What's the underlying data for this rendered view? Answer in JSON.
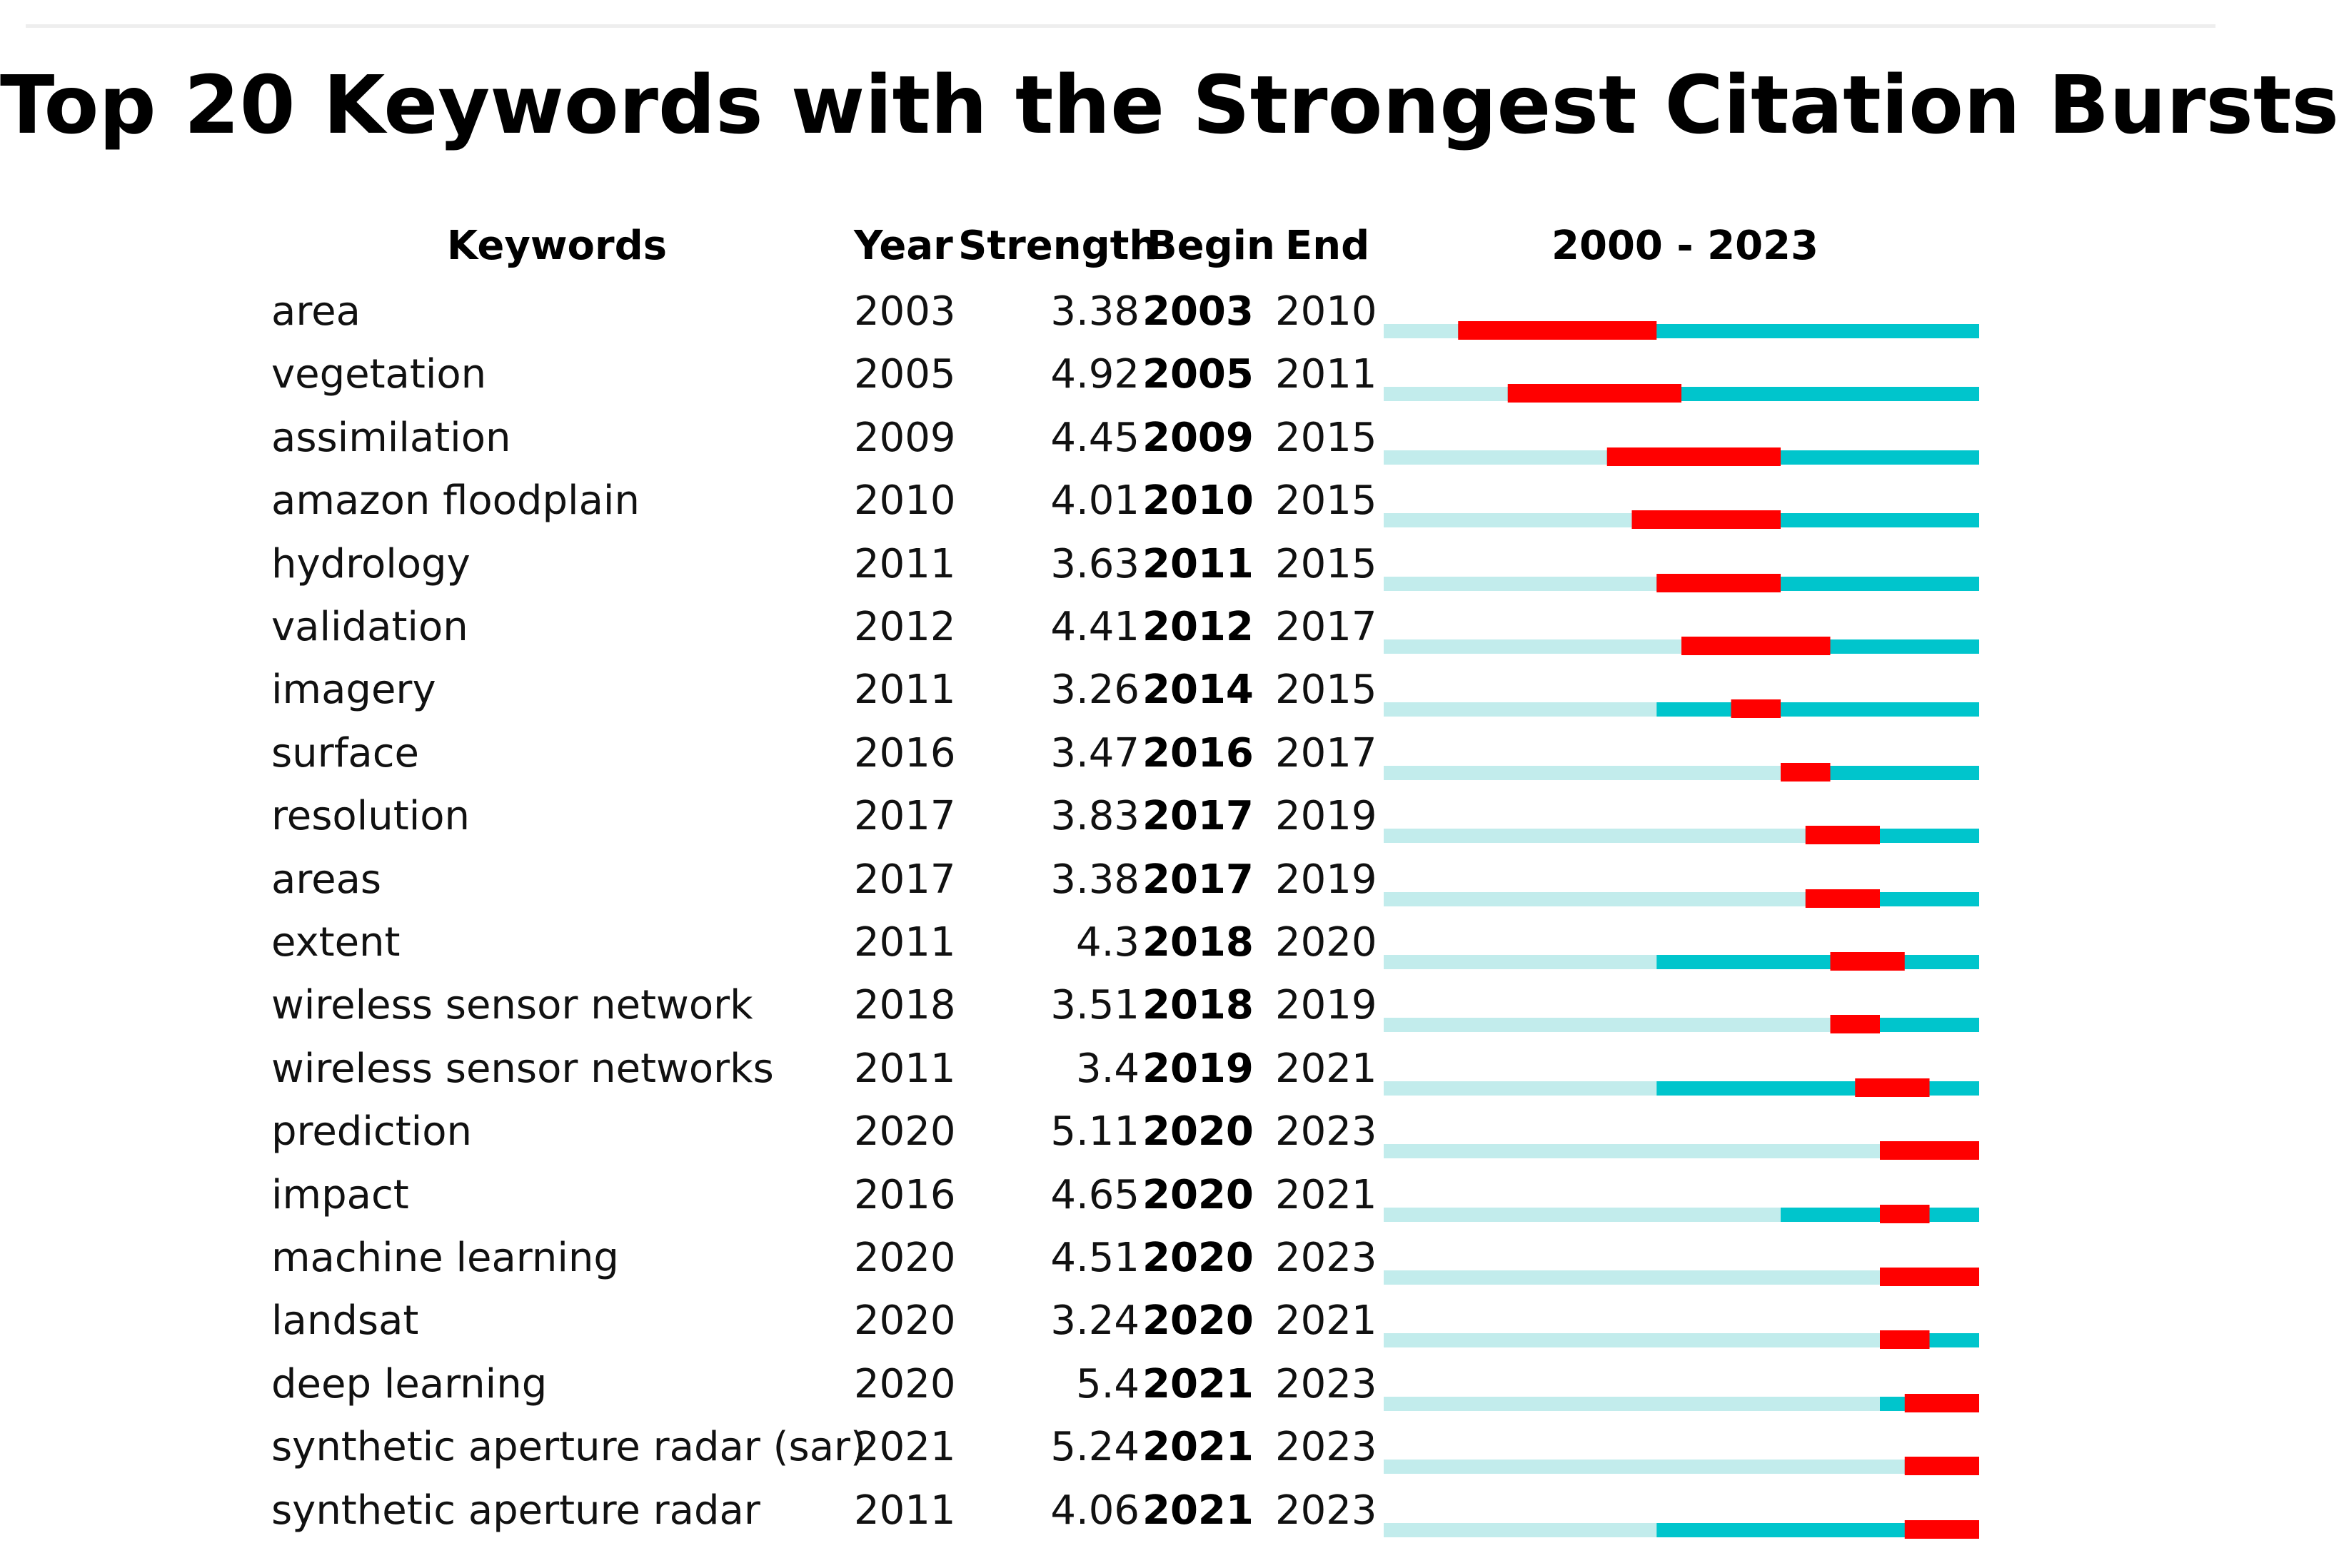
{
  "chart_data": {
    "type": "table",
    "title": "Top 20 Keywords with the Strongest Citation Bursts",
    "columns": {
      "keywords": "Keywords",
      "year": "Year",
      "strength": "Strength",
      "begin": "Begin",
      "end": "End",
      "timeline": "2000 - 2023"
    },
    "range": [
      2000,
      2023
    ],
    "colors": {
      "pre": "#c2ecec",
      "active": "#00c5cc",
      "burst": "#ff0000"
    },
    "rows": [
      {
        "keyword": "area",
        "year": "2003",
        "strength": "3.38",
        "begin": "2003",
        "end": "2010"
      },
      {
        "keyword": "vegetation",
        "year": "2005",
        "strength": "4.92",
        "begin": "2005",
        "end": "2011"
      },
      {
        "keyword": "assimilation",
        "year": "2009",
        "strength": "4.45",
        "begin": "2009",
        "end": "2015"
      },
      {
        "keyword": "amazon floodplain",
        "year": "2010",
        "strength": "4.01",
        "begin": "2010",
        "end": "2015"
      },
      {
        "keyword": "hydrology",
        "year": "2011",
        "strength": "3.63",
        "begin": "2011",
        "end": "2015"
      },
      {
        "keyword": "validation",
        "year": "2012",
        "strength": "4.41",
        "begin": "2012",
        "end": "2017"
      },
      {
        "keyword": "imagery",
        "year": "2011",
        "strength": "3.26",
        "begin": "2014",
        "end": "2015"
      },
      {
        "keyword": "surface",
        "year": "2016",
        "strength": "3.47",
        "begin": "2016",
        "end": "2017"
      },
      {
        "keyword": "resolution",
        "year": "2017",
        "strength": "3.83",
        "begin": "2017",
        "end": "2019"
      },
      {
        "keyword": "areas",
        "year": "2017",
        "strength": "3.38",
        "begin": "2017",
        "end": "2019"
      },
      {
        "keyword": "extent",
        "year": "2011",
        "strength": "4.3",
        "begin": "2018",
        "end": "2020"
      },
      {
        "keyword": "wireless sensor network",
        "year": "2018",
        "strength": "3.51",
        "begin": "2018",
        "end": "2019"
      },
      {
        "keyword": "wireless sensor networks",
        "year": "2011",
        "strength": "3.4",
        "begin": "2019",
        "end": "2021"
      },
      {
        "keyword": "prediction",
        "year": "2020",
        "strength": "5.11",
        "begin": "2020",
        "end": "2023"
      },
      {
        "keyword": "impact",
        "year": "2016",
        "strength": "4.65",
        "begin": "2020",
        "end": "2021"
      },
      {
        "keyword": "machine learning",
        "year": "2020",
        "strength": "4.51",
        "begin": "2020",
        "end": "2023"
      },
      {
        "keyword": "landsat",
        "year": "2020",
        "strength": "3.24",
        "begin": "2020",
        "end": "2021"
      },
      {
        "keyword": "deep learning",
        "year": "2020",
        "strength": "5.4",
        "begin": "2021",
        "end": "2023"
      },
      {
        "keyword": "synthetic aperture radar (sar)",
        "year": "2021",
        "strength": "5.24",
        "begin": "2021",
        "end": "2023"
      },
      {
        "keyword": "synthetic aperture radar",
        "year": "2011",
        "strength": "4.06",
        "begin": "2021",
        "end": "2023"
      }
    ]
  }
}
